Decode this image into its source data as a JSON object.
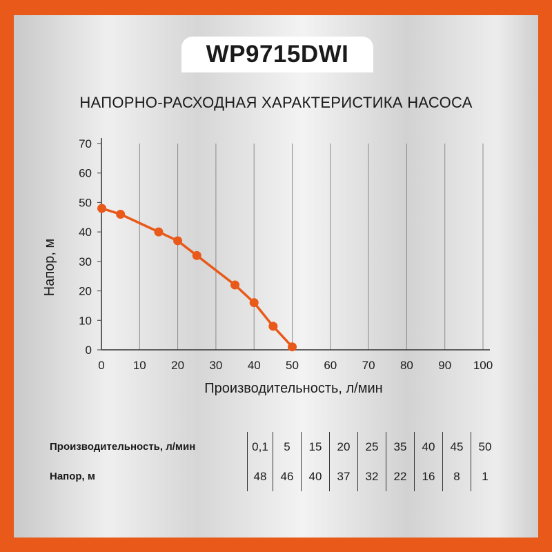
{
  "header": {
    "model": "WP9715DWI"
  },
  "title": "НАПОРНО-РАСХОДНАЯ ХАРАКТЕРИСТИКА НАСОСА",
  "colors": {
    "frame": "#e8591a",
    "curve": "#e8591a",
    "tab": "#ffffff"
  },
  "chart_data": {
    "type": "line",
    "title": "НАПОРНО-РАСХОДНАЯ ХАРАКТЕРИСТИКА НАСОСА",
    "xlabel": "Производительность, л/мин",
    "ylabel": "Напор, м",
    "xlim": [
      0,
      100
    ],
    "ylim": [
      0,
      70
    ],
    "xticks": [
      0,
      10,
      20,
      30,
      40,
      50,
      60,
      70,
      80,
      90,
      100
    ],
    "yticks": [
      0,
      10,
      20,
      30,
      40,
      50,
      60,
      70
    ],
    "grid": "vertical",
    "series": [
      {
        "x": [
          0.1,
          5,
          15,
          20,
          25,
          35,
          40,
          45,
          50
        ],
        "y": [
          48,
          46,
          40,
          37,
          32,
          22,
          16,
          8,
          1
        ]
      }
    ]
  },
  "table": {
    "rows": [
      {
        "label": "Производительность, л/мин",
        "values": [
          "0,1",
          "5",
          "15",
          "20",
          "25",
          "35",
          "40",
          "45",
          "50"
        ]
      },
      {
        "label": "Напор, м",
        "values": [
          "48",
          "46",
          "40",
          "37",
          "32",
          "22",
          "16",
          "8",
          "1"
        ]
      }
    ]
  }
}
